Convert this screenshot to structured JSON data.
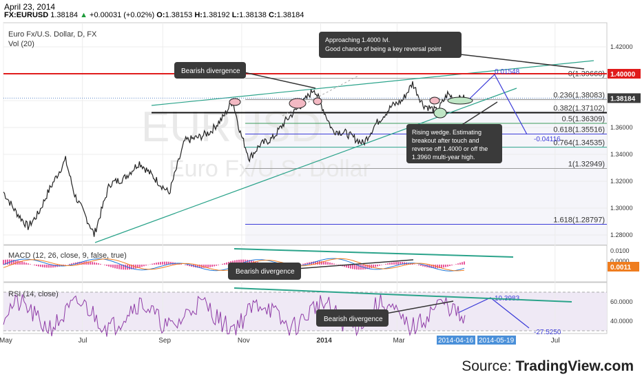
{
  "header": {
    "date": "April 23, 2014",
    "symbol": "FX:EURUSD",
    "last": "1.38184",
    "change_arrow": "▲",
    "change": "+0.00031 (+0.02%)",
    "open_label": "O:",
    "open": "1.38153",
    "high_label": "H:",
    "high": "1.38192",
    "low_label": "L:",
    "low": "1.38138",
    "close_label": "C:",
    "close": "1.38184"
  },
  "chart_data": [
    {
      "type": "candlestick",
      "title": "Euro Fx/U.S. Dollar, D, FX",
      "volume_label": "Vol (20)",
      "watermark": "EURUSD",
      "watermark_sub": "Euro Fx/U.S. Dollar",
      "y_ticks": [
        "1.42000",
        "1.40000",
        "1.38000",
        "1.36000",
        "1.34000",
        "1.32000",
        "1.30000",
        "1.28000"
      ],
      "ylim": [
        1.27,
        1.43
      ],
      "x_ticks": [
        "May",
        "Jul",
        "Sep",
        "Nov",
        "2014",
        "Mar",
        "Jul"
      ],
      "x_tick_dates": [
        "2013-05-01",
        "2013-07-01",
        "2013-09-01",
        "2013-11-01",
        "2014-01-01",
        "2014-03-01",
        "2014-07-01"
      ],
      "x_range": [
        "2013-05-01",
        "2014-08-10"
      ],
      "resistance_label": "1.40000",
      "resistance_value": 1.4,
      "last_price_label": "1.38184",
      "last_price": 1.38184,
      "price_path": [
        [
          "2013-05-01",
          1.312
        ],
        [
          "2013-05-10",
          1.298
        ],
        [
          "2013-05-20",
          1.286
        ],
        [
          "2013-05-28",
          1.296
        ],
        [
          "2013-06-05",
          1.313
        ],
        [
          "2013-06-18",
          1.336
        ],
        [
          "2013-06-25",
          1.31
        ],
        [
          "2013-07-08",
          1.285
        ],
        [
          "2013-07-10",
          1.28
        ],
        [
          "2013-07-22",
          1.318
        ],
        [
          "2013-08-02",
          1.322
        ],
        [
          "2013-08-14",
          1.334
        ],
        [
          "2013-08-28",
          1.32
        ],
        [
          "2013-09-06",
          1.311
        ],
        [
          "2013-09-18",
          1.35
        ],
        [
          "2013-09-30",
          1.353
        ],
        [
          "2013-10-08",
          1.357
        ],
        [
          "2013-10-18",
          1.368
        ],
        [
          "2013-10-25",
          1.38
        ],
        [
          "2013-10-31",
          1.356
        ],
        [
          "2013-11-07",
          1.337
        ],
        [
          "2013-11-15",
          1.347
        ],
        [
          "2013-11-25",
          1.352
        ],
        [
          "2013-12-05",
          1.365
        ],
        [
          "2013-12-18",
          1.378
        ],
        [
          "2013-12-27",
          1.389
        ],
        [
          "2014-01-10",
          1.358
        ],
        [
          "2014-01-20",
          1.356
        ],
        [
          "2014-02-03",
          1.348
        ],
        [
          "2014-02-12",
          1.362
        ],
        [
          "2014-02-25",
          1.376
        ],
        [
          "2014-03-05",
          1.38
        ],
        [
          "2014-03-13",
          1.393
        ],
        [
          "2014-03-21",
          1.377
        ],
        [
          "2014-04-01",
          1.372
        ],
        [
          "2014-04-09",
          1.385
        ],
        [
          "2014-04-15",
          1.381
        ],
        [
          "2014-04-23",
          1.38184
        ]
      ],
      "price_range": [
        1.274,
        1.396
      ],
      "fib_levels": [
        {
          "label": "0(1.39660)",
          "value": 1.3966
        },
        {
          "label": "0.236(1.38083)",
          "value": 1.38083
        },
        {
          "label": "0.382(1.37102)",
          "value": 1.37102
        },
        {
          "label": "0.5(1.36309)",
          "value": 1.36309
        },
        {
          "label": "0.618(1.35516)",
          "value": 1.35516
        },
        {
          "label": "0.764(1.34535)",
          "value": 1.34535
        },
        {
          "label": "1(1.32949)",
          "value": 1.32949
        },
        {
          "label": "1.618(1.28797)",
          "value": 1.28797
        }
      ],
      "projection_labels": [
        "0.01548",
        "-0.04116"
      ],
      "annotations": [
        "Approaching 1.4000 lvl.",
        "Good chance of being a key reversal point",
        "Bearish divergence",
        "Rising wedge. Estimating",
        "breakout after touch and",
        "reverse off 1.4000 or off the",
        "1.3960 multi-year high."
      ]
    },
    {
      "type": "line",
      "title": "MACD (12, 26, close, 9, false, true)",
      "y_ticks": [
        "0.0100",
        "0.0000"
      ],
      "last_value_label": "0.0011",
      "annotation": "Bearish divergence",
      "series": [
        {
          "name": "MACD",
          "color": "#1e77d8"
        },
        {
          "name": "signal",
          "color": "#ef7d1f"
        },
        {
          "name": "histogram",
          "color": "#e0207a"
        }
      ]
    },
    {
      "type": "line",
      "title": "RSI (14, close)",
      "y_ticks": [
        "60.0000",
        "40.0000"
      ],
      "projection_labels": [
        "10.3983",
        "-27.5250"
      ],
      "annotation": "Bearish divergence",
      "series": [
        {
          "name": "RSI",
          "color": "#8e3aa6"
        }
      ]
    }
  ],
  "date_tags": [
    "2014-04-16",
    "2014-05-19"
  ],
  "source": {
    "prefix": "Source: ",
    "brand": "TradingView.com"
  }
}
